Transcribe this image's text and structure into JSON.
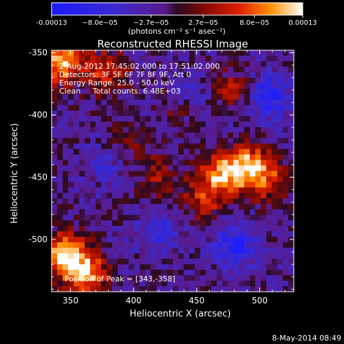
{
  "chart_data": {
    "type": "heatmap",
    "title": "Reconstructed RHESSI Image",
    "xlabel": "Heliocentric X (arcsec)",
    "ylabel": "Heliocentric Y (arcsec)",
    "xlim": [
      335,
      527
    ],
    "ylim": [
      -542,
      -348
    ],
    "x_ticks": [
      "350",
      "400",
      "450",
      "500"
    ],
    "x_tick_values": [
      350,
      400,
      450,
      500
    ],
    "y_ticks": [
      "-350",
      "-400",
      "-450",
      "-500"
    ],
    "y_tick_values": [
      -350,
      -400,
      -450,
      -500
    ],
    "colorbar": {
      "min": -0.00013,
      "max": 0.00013,
      "tick_labels": [
        "-0.00013",
        "−8.0e−05",
        "−2.7e−05",
        "2.7e−05",
        "8.0e−05",
        "0.00013"
      ],
      "tick_values": [
        -0.00013,
        -8e-05,
        -2.7e-05,
        2.7e-05,
        8e-05,
        0.00013
      ],
      "unit_label": "(photons cm⁻² s⁻¹ asec⁻²)"
    },
    "annotations": [
      "2-Aug-2012 17:45:02.000 to 17:51:02.000",
      "Detectors: 3F 5F 6F 7F 8F 9F, Att 0",
      "Energy Range: 25.0 - 50.0 keV",
      "Clean     Total counts: 6.48E+03",
      "Position of Peak = [343,-358]"
    ],
    "peak": {
      "x": 343,
      "y": -358
    },
    "hotspots": [
      {
        "x": 345,
        "y": -512,
        "v": 0.00013
      },
      {
        "x": 362,
        "y": -528,
        "v": 0.00012
      },
      {
        "x": 343,
        "y": -358,
        "v": 0.00013
      },
      {
        "x": 378,
        "y": -366,
        "v": 8e-05
      },
      {
        "x": 470,
        "y": -448,
        "v": 0.00011
      },
      {
        "x": 490,
        "y": -440,
        "v": 0.0001
      },
      {
        "x": 455,
        "y": -468,
        "v": 7e-05
      },
      {
        "x": 505,
        "y": -452,
        "v": 8e-05
      },
      {
        "x": 480,
        "y": -380,
        "v": 6e-05
      },
      {
        "x": 420,
        "y": -450,
        "v": 5e-05
      },
      {
        "x": 395,
        "y": -425,
        "v": 4e-05
      },
      {
        "x": 435,
        "y": -395,
        "v": 4e-05
      }
    ],
    "coldspots": [
      {
        "x": 505,
        "y": -385,
        "v": -9e-05
      },
      {
        "x": 480,
        "y": -505,
        "v": -8e-05
      },
      {
        "x": 420,
        "y": -495,
        "v": -5e-05
      },
      {
        "x": 380,
        "y": -440,
        "v": -4e-05
      },
      {
        "x": 445,
        "y": -385,
        "v": -4e-05
      }
    ]
  },
  "footer": {
    "timestamp": "8-May-2014 08:49"
  }
}
